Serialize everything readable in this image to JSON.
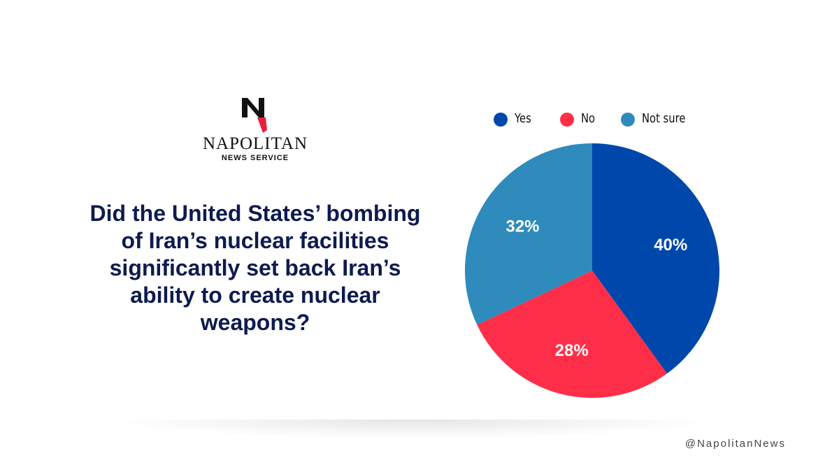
{
  "brand": {
    "name": "NAPOLITAN",
    "subtitle": "NEWS SERVICE",
    "logo_letter": "N"
  },
  "question": "Did the United States’ bombing of Iran’s nuclear facilities significantly set back Iran’s ability to create nuclear weapons?",
  "handle": "@NapolitanNews",
  "colors": {
    "yes": "#0047ab",
    "no": "#ff2e48",
    "not_sure": "#2e8bbc",
    "question": "#0d1b4f"
  },
  "chart_data": {
    "type": "pie",
    "title": "",
    "legend": "top",
    "categories": [
      "Yes",
      "No",
      "Not sure"
    ],
    "values": [
      40,
      28,
      32
    ],
    "labels": [
      "40%",
      "28%",
      "32%"
    ],
    "colors": [
      "#0047ab",
      "#ff2e48",
      "#2e8bbc"
    ]
  }
}
